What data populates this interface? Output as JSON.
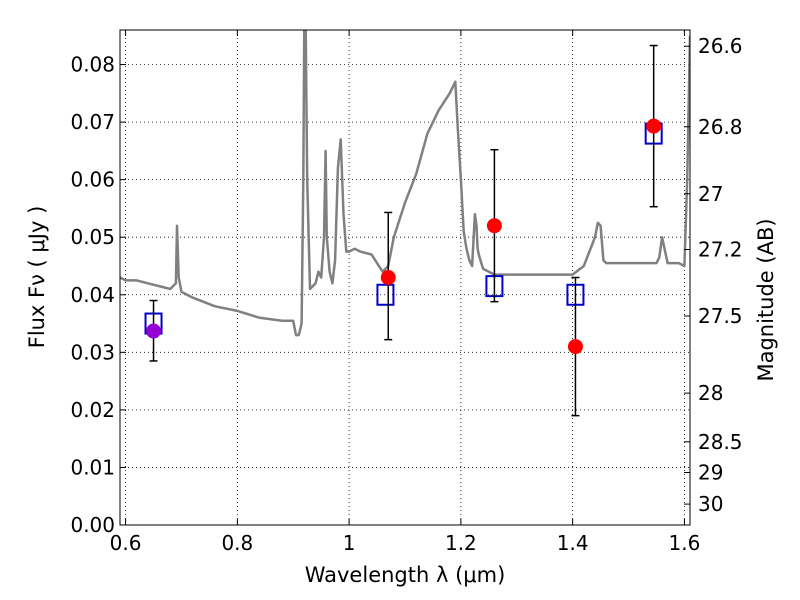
{
  "chart_data": {
    "type": "scatter",
    "xlabel": "Wavelength  λ (μm)",
    "ylabel": "Flux  Fν  ( μJy )",
    "y2label": "Magnitude (AB)",
    "xlim": [
      0.59,
      1.61
    ],
    "ylim": [
      0.0,
      0.086
    ],
    "grid": true,
    "x_ticks": [
      0.6,
      0.8,
      1.0,
      1.2,
      1.4,
      1.6
    ],
    "x_tick_labels": [
      "0.6",
      "0.8",
      "1",
      "1.2",
      "1.4",
      "1.6"
    ],
    "y_ticks": [
      0.0,
      0.01,
      0.02,
      0.03,
      0.04,
      0.05,
      0.06,
      0.07,
      0.08
    ],
    "y_tick_labels": [
      "0.00",
      "0.01",
      "0.02",
      "0.03",
      "0.04",
      "0.05",
      "0.06",
      "0.07",
      "0.08"
    ],
    "y2_ticks": [
      26.6,
      26.8,
      27.0,
      27.2,
      27.5,
      28.0,
      28.5,
      29.0,
      30.0
    ],
    "y2_tick_labels": [
      "26.6",
      "26.8",
      "27",
      "27.2",
      "27.5",
      "28",
      "28.5",
      "29",
      "30"
    ],
    "colors": {
      "model": "#808080",
      "observed": "#ff0000",
      "observed_first": "#9400d3",
      "model_box": "#0000cc",
      "errorbar": "#000000"
    },
    "model_spectrum": {
      "x": [
        0.59,
        0.6,
        0.62,
        0.64,
        0.66,
        0.68,
        0.69,
        0.692,
        0.695,
        0.7,
        0.72,
        0.76,
        0.8,
        0.84,
        0.88,
        0.9,
        0.905,
        0.91,
        0.915,
        0.918,
        0.92,
        0.922,
        0.925,
        0.93,
        0.94,
        0.945,
        0.95,
        0.955,
        0.958,
        0.96,
        0.965,
        0.97,
        0.975,
        0.98,
        0.985,
        0.99,
        0.995,
        1.0,
        1.01,
        1.02,
        1.04,
        1.06,
        1.07,
        1.08,
        1.1,
        1.12,
        1.14,
        1.16,
        1.18,
        1.19,
        1.195,
        1.2,
        1.205,
        1.21,
        1.215,
        1.22,
        1.225,
        1.228,
        1.23,
        1.232,
        1.235,
        1.24,
        1.25,
        1.26,
        1.28,
        1.3,
        1.32,
        1.34,
        1.36,
        1.38,
        1.4,
        1.42,
        1.44,
        1.445,
        1.45,
        1.455,
        1.46,
        1.48,
        1.5,
        1.52,
        1.53,
        1.54,
        1.545,
        1.55,
        1.555,
        1.56,
        1.57,
        1.58,
        1.59,
        1.6,
        1.605,
        1.61
      ],
      "y": [
        0.043,
        0.0425,
        0.0425,
        0.042,
        0.0415,
        0.041,
        0.042,
        0.052,
        0.043,
        0.0405,
        0.0395,
        0.038,
        0.0372,
        0.036,
        0.0355,
        0.0355,
        0.033,
        0.033,
        0.035,
        0.06,
        0.09,
        0.09,
        0.06,
        0.041,
        0.042,
        0.044,
        0.043,
        0.05,
        0.065,
        0.05,
        0.044,
        0.042,
        0.046,
        0.062,
        0.067,
        0.054,
        0.0475,
        0.0475,
        0.048,
        0.0475,
        0.047,
        0.044,
        0.045,
        0.05,
        0.056,
        0.061,
        0.068,
        0.072,
        0.075,
        0.077,
        0.068,
        0.06,
        0.051,
        0.048,
        0.046,
        0.045,
        0.054,
        0.052,
        0.048,
        0.047,
        0.046,
        0.0445,
        0.044,
        0.0435,
        0.0435,
        0.0435,
        0.0435,
        0.0435,
        0.0435,
        0.0435,
        0.0435,
        0.045,
        0.05,
        0.0525,
        0.052,
        0.046,
        0.0455,
        0.0455,
        0.0455,
        0.0455,
        0.0455,
        0.0455,
        0.0455,
        0.0455,
        0.0465,
        0.05,
        0.0455,
        0.0455,
        0.0455,
        0.045,
        0.06,
        0.085
      ]
    },
    "model_photometry": [
      {
        "x": 0.65,
        "y": 0.035
      },
      {
        "x": 1.065,
        "y": 0.04
      },
      {
        "x": 1.26,
        "y": 0.0415
      },
      {
        "x": 1.405,
        "y": 0.04
      },
      {
        "x": 1.545,
        "y": 0.068
      }
    ],
    "observed_points": [
      {
        "x": 0.65,
        "y": 0.0337,
        "err": [
          0.0285,
          0.039
        ]
      },
      {
        "x": 1.07,
        "y": 0.043,
        "err": [
          0.0322,
          0.0543
        ]
      },
      {
        "x": 1.26,
        "y": 0.052,
        "err": [
          0.0388,
          0.0652
        ]
      },
      {
        "x": 1.405,
        "y": 0.031,
        "err": [
          0.019,
          0.043
        ]
      },
      {
        "x": 1.545,
        "y": 0.0693,
        "err": [
          0.0553,
          0.0833
        ]
      }
    ]
  }
}
